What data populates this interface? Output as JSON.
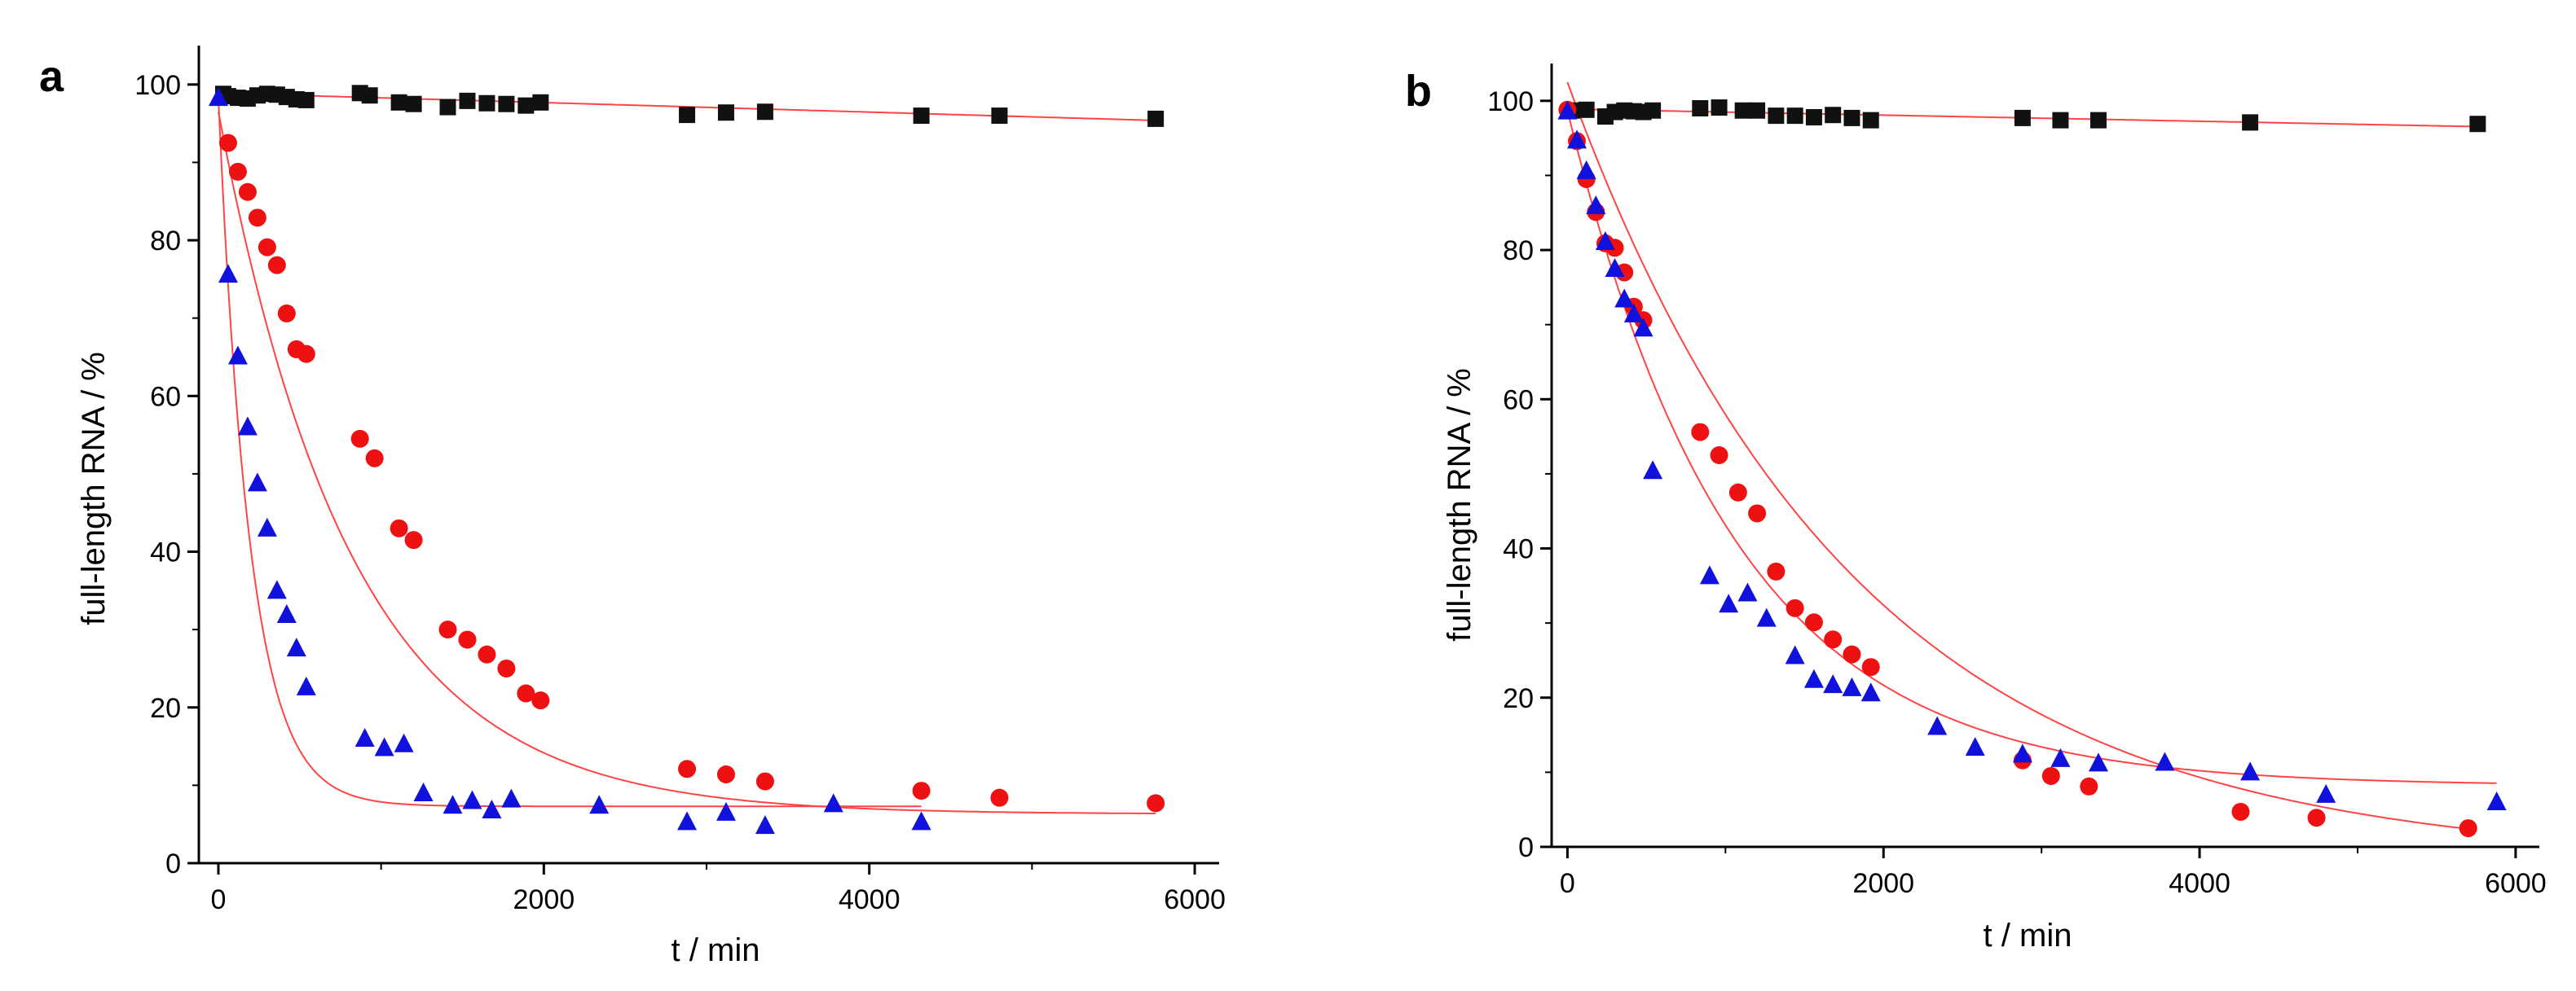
{
  "chart_data": [
    {
      "type": "scatter",
      "panel_label": "a",
      "xlabel": "t / min",
      "ylabel": "full-length RNA / %",
      "xlim": [
        -120,
        6150
      ],
      "ylim": [
        0,
        105
      ],
      "xticks": [
        0,
        2000,
        4000,
        6000
      ],
      "yticks": [
        0,
        20,
        40,
        60,
        80,
        100
      ],
      "x_tick_labels": [
        "0",
        "2000",
        "4000",
        "6000"
      ],
      "y_tick_labels": [
        "0",
        "20",
        "40",
        "60",
        "80",
        "100"
      ],
      "fit_color": "#ff4444",
      "series": [
        {
          "marker": "square",
          "color": "#111111",
          "x": [
            30,
            60,
            120,
            180,
            240,
            300,
            360,
            420,
            480,
            540,
            870,
            930,
            1110,
            1200,
            1410,
            1530,
            1650,
            1770,
            1890,
            1980,
            2880,
            3120,
            3360,
            4320,
            4800,
            5760
          ],
          "y": [
            98.8,
            98.5,
            98.3,
            98.2,
            98.6,
            98.8,
            98.7,
            98.4,
            98.1,
            98.0,
            98.9,
            98.6,
            97.7,
            97.5,
            97.1,
            97.9,
            97.6,
            97.5,
            97.3,
            97.7,
            96.1,
            96.4,
            96.5,
            96.0,
            96.0,
            95.6
          ],
          "fit": {
            "a": 98.9,
            "b": 0.00061
          }
        },
        {
          "marker": "circle",
          "color": "#ee1111",
          "x": [
            60,
            120,
            180,
            240,
            300,
            360,
            420,
            480,
            540,
            870,
            960,
            1110,
            1200,
            1410,
            1530,
            1650,
            1770,
            1890,
            1980,
            2880,
            3120,
            3360,
            4320,
            4800,
            5760
          ],
          "y": [
            92.5,
            88.8,
            86.2,
            82.9,
            79.1,
            76.8,
            70.6,
            66.0,
            65.4,
            54.5,
            52.0,
            43.0,
            41.5,
            30.0,
            28.7,
            26.8,
            25.0,
            21.8,
            20.9,
            12.1,
            11.4,
            10.5,
            9.3,
            8.4,
            7.7
          ]
        },
        {
          "marker": "triangle",
          "color": "#1111dd",
          "x": [
            0,
            60,
            120,
            180,
            240,
            300,
            360,
            420,
            480,
            540,
            900,
            1020,
            1140,
            1260,
            1440,
            1560,
            1680,
            1800,
            2340,
            2880,
            3120,
            3360,
            3780,
            4320
          ],
          "y": [
            98.3,
            75.6,
            65.1,
            56.0,
            48.8,
            43.0,
            35.0,
            31.9,
            27.6,
            22.6,
            16.0,
            14.8,
            15.3,
            9.0,
            7.4,
            8.0,
            6.8,
            8.2,
            7.4,
            5.3,
            6.5,
            4.8,
            7.6,
            5.3
          ]
        }
      ]
    },
    {
      "type": "scatter",
      "panel_label": "b",
      "xlabel": "t / min",
      "ylabel": "full-length RNA / %",
      "xlim": [
        -100,
        6150
      ],
      "ylim": [
        0,
        105
      ],
      "xticks": [
        0,
        2000,
        4000,
        6000
      ],
      "yticks": [
        0,
        20,
        40,
        60,
        80,
        100
      ],
      "x_tick_labels": [
        "0",
        "2000",
        "4000",
        "6000"
      ],
      "y_tick_labels": [
        "0",
        "20",
        "40",
        "60",
        "80",
        "100"
      ],
      "fit_color": "#ff4444",
      "series": [
        {
          "marker": "square",
          "color": "#111111",
          "x": [
            30,
            120,
            240,
            300,
            360,
            420,
            480,
            540,
            840,
            960,
            1110,
            1200,
            1320,
            1440,
            1560,
            1680,
            1800,
            1920,
            2880,
            3120,
            3360,
            4320,
            5760
          ],
          "y": [
            98.7,
            98.8,
            97.9,
            98.5,
            98.7,
            98.6,
            98.5,
            98.7,
            99.0,
            99.1,
            98.7,
            98.7,
            98.0,
            98.0,
            97.8,
            98.1,
            97.7,
            97.4,
            97.7,
            97.4,
            97.4,
            97.1,
            96.9
          ]
        },
        {
          "marker": "circle",
          "color": "#ee1111",
          "x": [
            0,
            60,
            120,
            180,
            240,
            300,
            360,
            420,
            480,
            840,
            960,
            1080,
            1200,
            1320,
            1440,
            1560,
            1680,
            1800,
            1920,
            2880,
            3060,
            3300,
            4260,
            4740,
            5700
          ],
          "y": [
            98.8,
            94.6,
            89.5,
            85.1,
            80.9,
            80.3,
            77.0,
            72.4,
            70.6,
            55.6,
            52.5,
            47.5,
            44.7,
            36.9,
            32.0,
            30.1,
            27.8,
            25.8,
            24.1,
            11.6,
            9.5,
            8.1,
            4.7,
            3.9,
            2.5
          ]
        },
        {
          "marker": "triangle",
          "color": "#1111dd",
          "x": [
            0,
            60,
            120,
            180,
            240,
            300,
            360,
            420,
            480,
            540,
            900,
            1020,
            1140,
            1260,
            1440,
            1560,
            1680,
            1800,
            1920,
            2340,
            2580,
            2880,
            3120,
            3360,
            3780,
            4320,
            4800,
            5880
          ],
          "y": [
            98.6,
            94.7,
            90.6,
            85.9,
            81.1,
            77.5,
            73.4,
            71.4,
            69.5,
            50.4,
            36.3,
            32.5,
            34.0,
            30.6,
            25.6,
            22.4,
            21.7,
            21.3,
            20.6,
            16.1,
            13.3,
            12.4,
            11.8,
            11.2,
            11.3,
            10.0,
            7.0,
            6.0
          ]
        }
      ]
    }
  ]
}
